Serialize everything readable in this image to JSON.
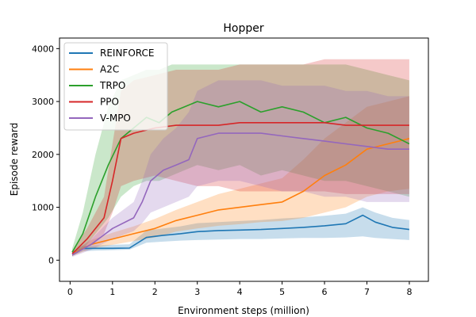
{
  "chart_data": {
    "type": "line",
    "title": "Hopper",
    "xlabel": "Environment steps (million)",
    "ylabel": "Episode reward",
    "xlim": [
      -0.25,
      8.45
    ],
    "ylim": [
      -400,
      4200
    ],
    "xticks": [
      0,
      1,
      2,
      3,
      4,
      5,
      6,
      7,
      8
    ],
    "yticks": [
      0,
      1000,
      2000,
      3000,
      4000
    ],
    "grid": false,
    "legend_position": "upper-left",
    "series": [
      {
        "name": "REINFORCE",
        "color": "#1f77b4",
        "x": [
          0.05,
          0.3,
          0.6,
          1.0,
          1.4,
          1.8,
          2.2,
          2.6,
          3.0,
          3.5,
          4.0,
          4.5,
          5.0,
          5.5,
          6.0,
          6.5,
          6.9,
          7.2,
          7.6,
          8.0
        ],
        "mean": [
          120,
          220,
          225,
          225,
          230,
          430,
          470,
          500,
          540,
          560,
          570,
          580,
          600,
          620,
          650,
          690,
          850,
          720,
          620,
          580
        ],
        "low": [
          80,
          170,
          180,
          190,
          200,
          330,
          350,
          370,
          380,
          390,
          400,
          400,
          410,
          420,
          420,
          430,
          450,
          420,
          400,
          380
        ],
        "high": [
          160,
          270,
          280,
          290,
          300,
          560,
          600,
          640,
          700,
          720,
          740,
          760,
          790,
          810,
          840,
          880,
          1000,
          900,
          800,
          760
        ]
      },
      {
        "name": "A2C",
        "color": "#ff7f0e",
        "x": [
          0.05,
          0.5,
          1.0,
          1.5,
          2.0,
          2.5,
          3.0,
          3.5,
          4.0,
          4.5,
          5.0,
          5.5,
          6.0,
          6.5,
          7.0,
          7.5,
          8.0
        ],
        "mean": [
          120,
          300,
          400,
          500,
          600,
          750,
          850,
          950,
          1000,
          1050,
          1100,
          1300,
          1600,
          1800,
          2100,
          2200,
          2300
        ],
        "low": [
          80,
          220,
          290,
          360,
          430,
          540,
          600,
          650,
          680,
          720,
          740,
          800,
          900,
          1000,
          1200,
          1300,
          1350
        ],
        "high": [
          160,
          380,
          520,
          640,
          780,
          950,
          1100,
          1250,
          1350,
          1450,
          1550,
          1900,
          2300,
          2600,
          2900,
          3000,
          3100
        ]
      },
      {
        "name": "TRPO",
        "color": "#2ca02c",
        "x": [
          0.05,
          0.3,
          0.6,
          0.9,
          1.2,
          1.5,
          1.8,
          2.1,
          2.4,
          2.7,
          3.0,
          3.5,
          4.0,
          4.5,
          5.0,
          5.5,
          6.0,
          6.5,
          7.0,
          7.5,
          8.0
        ],
        "mean": [
          150,
          500,
          1200,
          1800,
          2300,
          2500,
          2700,
          2600,
          2800,
          2900,
          3000,
          2900,
          3000,
          2800,
          2900,
          2800,
          2600,
          2700,
          2500,
          2400,
          2200
        ],
        "low": [
          80,
          200,
          500,
          800,
          1200,
          1400,
          1500,
          1500,
          1600,
          1700,
          1800,
          1700,
          1800,
          1600,
          1700,
          1600,
          1500,
          1500,
          1400,
          1300,
          1200
        ],
        "high": [
          220,
          900,
          2000,
          2900,
          3400,
          3500,
          3600,
          3600,
          3700,
          3700,
          3700,
          3700,
          3700,
          3700,
          3700,
          3700,
          3700,
          3700,
          3600,
          3500,
          3400
        ]
      },
      {
        "name": "PPO",
        "color": "#d62728",
        "x": [
          0.05,
          0.4,
          0.8,
          1.0,
          1.2,
          1.5,
          2.0,
          2.5,
          3.0,
          3.5,
          4.0,
          4.5,
          5.0,
          5.5,
          6.0,
          6.5,
          7.0,
          7.5,
          8.0
        ],
        "mean": [
          120,
          400,
          800,
          1500,
          2300,
          2400,
          2500,
          2550,
          2550,
          2550,
          2600,
          2600,
          2600,
          2600,
          2600,
          2550,
          2550,
          2550,
          2550
        ],
        "low": [
          80,
          250,
          500,
          900,
          1400,
          1500,
          1600,
          1500,
          1400,
          1400,
          1300,
          1300,
          1300,
          1300,
          1300,
          1250,
          1250,
          1250,
          1250
        ],
        "high": [
          160,
          600,
          1200,
          2200,
          3200,
          3400,
          3500,
          3600,
          3600,
          3600,
          3700,
          3700,
          3700,
          3700,
          3800,
          3800,
          3800,
          3800,
          3800
        ]
      },
      {
        "name": "V-MPO",
        "color": "#9467bd",
        "x": [
          0.05,
          0.5,
          1.0,
          1.5,
          1.7,
          1.9,
          2.2,
          2.5,
          2.8,
          3.0,
          3.5,
          4.0,
          4.5,
          5.0,
          5.5,
          6.0,
          6.5,
          7.0,
          7.5,
          8.0
        ],
        "mean": [
          100,
          300,
          600,
          800,
          1100,
          1500,
          1700,
          1800,
          1900,
          2300,
          2400,
          2400,
          2400,
          2350,
          2300,
          2250,
          2200,
          2150,
          2100,
          2100
        ],
        "low": [
          60,
          200,
          400,
          550,
          700,
          900,
          1000,
          1100,
          1200,
          1400,
          1500,
          1500,
          1400,
          1300,
          1300,
          1200,
          1200,
          1100,
          1100,
          1100
        ],
        "high": [
          140,
          400,
          800,
          1100,
          1500,
          2000,
          2300,
          2500,
          2800,
          3200,
          3400,
          3400,
          3400,
          3300,
          3300,
          3300,
          3200,
          3200,
          3100,
          3100
        ]
      }
    ]
  }
}
